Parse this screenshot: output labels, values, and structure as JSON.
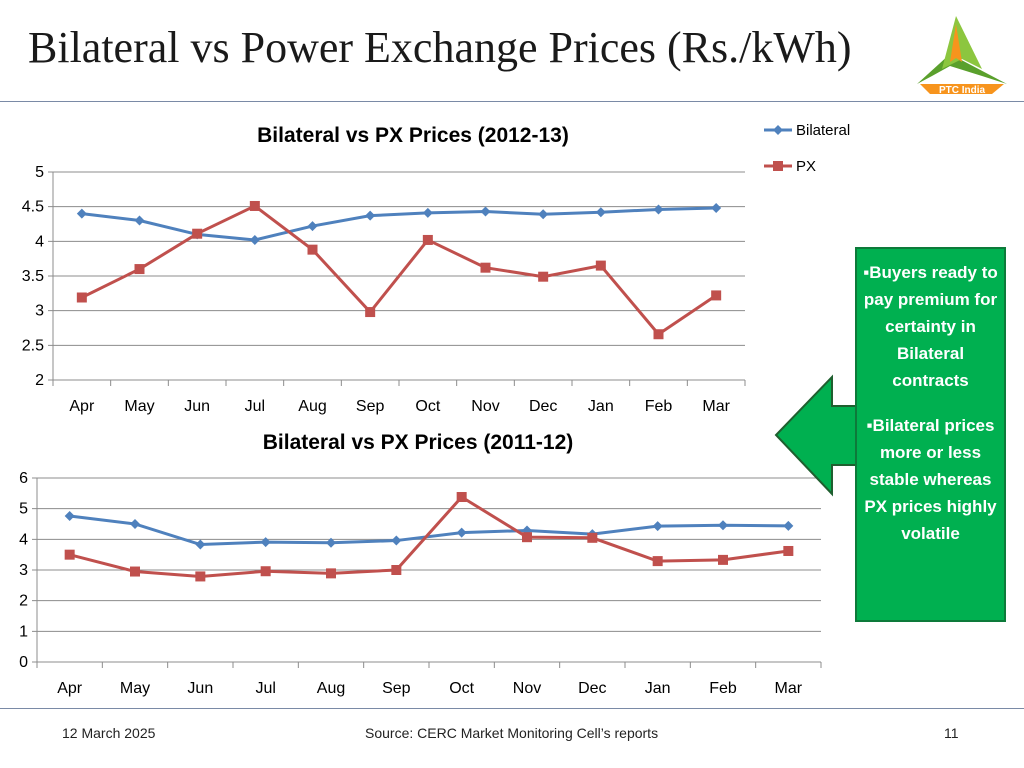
{
  "slide": {
    "title": "Bilateral vs Power Exchange Prices (Rs./kWh)",
    "logo_text": "PTC India",
    "footer_date": "12 March 2025",
    "footer_source": "Source: CERC Market Monitoring Cell’s reports",
    "page_number": "11"
  },
  "callout": {
    "point1": "▪Buyers ready to pay premium for certainty  in Bilateral contracts",
    "point2": "▪Bilateral prices more or less stable whereas PX prices highly volatile",
    "color": "#00b050"
  },
  "chart_data": [
    {
      "type": "line",
      "title": "Bilateral vs PX Prices (2012-13)",
      "categories": [
        "Apr",
        "May",
        "Jun",
        "Jul",
        "Aug",
        "Sep",
        "Oct",
        "Nov",
        "Dec",
        "Jan",
        "Feb",
        "Mar"
      ],
      "ylim": [
        2,
        5
      ],
      "yticks": [
        "2",
        "2.5",
        "3",
        "3.5",
        "4",
        "4.5",
        "5"
      ],
      "grid": true,
      "legend": "right",
      "series": [
        {
          "name": "Bilateral",
          "color": "#4f81bd",
          "marker": "diamond",
          "values": [
            4.4,
            4.3,
            4.1,
            4.02,
            4.22,
            4.37,
            4.41,
            4.43,
            4.39,
            4.42,
            4.46,
            4.48
          ]
        },
        {
          "name": "PX",
          "color": "#c0504d",
          "marker": "square",
          "values": [
            3.19,
            3.6,
            4.11,
            4.51,
            3.88,
            2.98,
            4.02,
            3.62,
            3.49,
            3.65,
            2.66,
            3.22
          ]
        }
      ]
    },
    {
      "type": "line",
      "title": "Bilateral vs PX Prices (2011-12)",
      "categories": [
        "Apr",
        "May",
        "Jun",
        "Jul",
        "Aug",
        "Sep",
        "Oct",
        "Nov",
        "Dec",
        "Jan",
        "Feb",
        "Mar"
      ],
      "ylim": [
        0,
        6
      ],
      "yticks": [
        "0",
        "1",
        "2",
        "3",
        "4",
        "5",
        "6"
      ],
      "grid": true,
      "series": [
        {
          "color": "#4f81bd",
          "marker": "diamond",
          "values": [
            4.76,
            4.5,
            3.83,
            3.91,
            3.89,
            3.96,
            4.22,
            4.29,
            4.17,
            4.43,
            4.46,
            4.44
          ]
        },
        {
          "color": "#c0504d",
          "marker": "square",
          "values": [
            3.5,
            2.95,
            2.79,
            2.96,
            2.89,
            3.0,
            5.38,
            4.07,
            4.05,
            3.29,
            3.33,
            3.62
          ]
        }
      ]
    }
  ]
}
